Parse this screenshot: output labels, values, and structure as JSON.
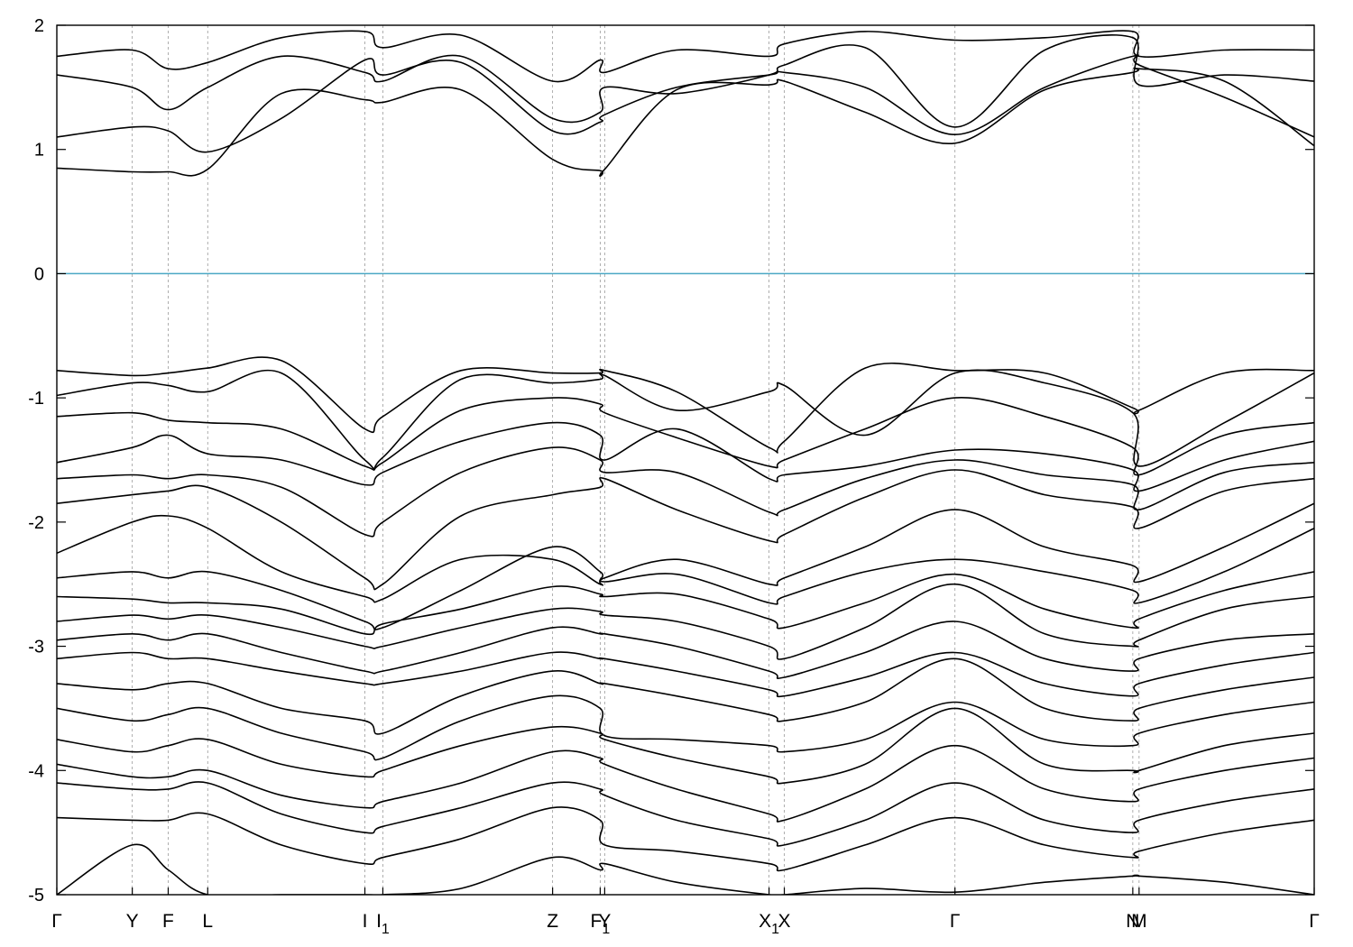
{
  "chart_data": {
    "type": "line",
    "title": "",
    "xlabel": "",
    "ylabel": "",
    "ylim": [
      -5,
      2
    ],
    "yticks": [
      "-5",
      "-4",
      "-3",
      "-2",
      "-1",
      "0",
      "1",
      "2"
    ],
    "fermi_level": 0,
    "fermi_color": "#4aa8c4",
    "line_color": "#000000",
    "grid": "vertical dashed lines at high-symmetry points",
    "legend": "none",
    "kpoints": [
      {
        "label": "Γ",
        "x": 0.0
      },
      {
        "label": "Y",
        "x": 0.84
      },
      {
        "label": "F",
        "x": 1.24
      },
      {
        "label": "L",
        "x": 1.68
      },
      {
        "label": "I",
        "x": 3.43
      },
      {
        "label": "I",
        "sub": "1",
        "x": 3.63
      },
      {
        "label": "Z",
        "x": 5.52
      },
      {
        "label": "F",
        "sub": "1",
        "x": 6.05
      },
      {
        "label": "Y",
        "x": 6.1
      },
      {
        "label": "X",
        "sub": "1",
        "x": 7.93
      },
      {
        "label": "X",
        "x": 8.1
      },
      {
        "label": "Γ",
        "x": 10.0
      },
      {
        "label": "N",
        "x": 11.98
      },
      {
        "label": "M",
        "x": 12.05
      },
      {
        "label": "Γ",
        "x": 14.0
      }
    ],
    "x_range": [
      0,
      14
    ],
    "series": [
      {
        "x": [
          0,
          0.84,
          1.24,
          1.68,
          2.5,
          3.43,
          3.63,
          4.5,
          5.52,
          6.05,
          6.1,
          6.9,
          7.93,
          8.1,
          9.0,
          10.0,
          11.0,
          11.98,
          12.05,
          13.0,
          14.0
        ],
        "values": [
          0.85,
          0.82,
          0.82,
          0.84,
          1.45,
          1.4,
          1.38,
          1.48,
          0.92,
          0.83,
          0.84,
          1.48,
          1.52,
          1.55,
          1.3,
          1.05,
          1.48,
          1.62,
          1.65,
          1.55,
          1.03
        ]
      },
      {
        "x": [
          0,
          0.84,
          1.24,
          1.68,
          2.5,
          3.43,
          3.63,
          4.5,
          5.52,
          6.05,
          6.1,
          6.9,
          7.93,
          8.1,
          9.0,
          10.0,
          11.0,
          11.98,
          12.05,
          13.0,
          14.0
        ],
        "values": [
          1.1,
          1.18,
          1.15,
          0.98,
          1.25,
          1.72,
          1.6,
          1.7,
          1.15,
          1.22,
          1.28,
          1.5,
          1.6,
          1.62,
          1.5,
          1.12,
          1.5,
          1.75,
          1.68,
          1.42,
          1.1
        ]
      },
      {
        "x": [
          0,
          0.84,
          1.24,
          1.68,
          2.5,
          3.43,
          3.63,
          4.5,
          5.52,
          6.05,
          6.1,
          6.9,
          7.93,
          8.1,
          9.0,
          10.0,
          11.0,
          11.98,
          12.05,
          13.0,
          14.0
        ],
        "values": [
          1.6,
          1.5,
          1.32,
          1.5,
          1.75,
          1.62,
          1.55,
          1.75,
          1.25,
          1.3,
          1.5,
          1.45,
          1.6,
          1.68,
          1.82,
          1.18,
          1.8,
          1.9,
          1.52,
          1.6,
          1.55
        ]
      },
      {
        "x": [
          0,
          0.84,
          1.24,
          1.68,
          2.5,
          3.43,
          3.63,
          4.5,
          5.52,
          6.05,
          6.1,
          6.9,
          7.93,
          8.1,
          9.0,
          10.0,
          11.0,
          11.98,
          12.05,
          13.0,
          14.0
        ],
        "values": [
          1.75,
          1.8,
          1.65,
          1.7,
          1.9,
          1.95,
          1.82,
          1.92,
          1.55,
          1.72,
          1.62,
          1.8,
          1.75,
          1.85,
          1.95,
          1.88,
          1.9,
          1.95,
          1.75,
          1.8,
          1.8
        ]
      },
      {
        "x": [
          0,
          0.84,
          1.24,
          1.68,
          2.5,
          3.43,
          3.63,
          4.5,
          5.52,
          6.05,
          6.1,
          6.9,
          7.93,
          8.1,
          9.0,
          10.0,
          11.0,
          11.98,
          12.05,
          13.0,
          14.0
        ],
        "values": [
          -0.78,
          -0.82,
          -0.8,
          -0.76,
          -0.7,
          -1.25,
          -1.15,
          -0.78,
          -0.8,
          -0.8,
          -0.78,
          -0.95,
          -1.4,
          -1.35,
          -0.76,
          -0.78,
          -0.8,
          -1.08,
          -1.1,
          -0.8,
          -0.78
        ]
      },
      {
        "x": [
          0,
          0.84,
          1.24,
          1.68,
          2.5,
          3.43,
          3.63,
          4.5,
          5.52,
          6.05,
          6.1,
          6.9,
          7.93,
          8.1,
          9.0,
          10.0,
          11.0,
          11.98,
          12.05,
          13.0,
          14.0
        ],
        "values": [
          -0.98,
          -0.88,
          -0.9,
          -0.95,
          -0.8,
          -1.5,
          -1.48,
          -0.85,
          -0.88,
          -0.85,
          -0.82,
          -1.1,
          -0.95,
          -0.9,
          -1.3,
          -0.8,
          -0.88,
          -1.12,
          -1.55,
          -1.2,
          -0.8
        ]
      },
      {
        "x": [
          0,
          0.84,
          1.24,
          1.68,
          2.5,
          3.43,
          3.63,
          4.5,
          5.52,
          6.05,
          6.1,
          6.9,
          7.93,
          8.1,
          9.0,
          10.0,
          11.0,
          11.98,
          12.05,
          13.0,
          14.0
        ],
        "values": [
          -1.15,
          -1.12,
          -1.18,
          -1.2,
          -1.25,
          -1.55,
          -1.52,
          -1.1,
          -1.0,
          -1.05,
          -1.12,
          -1.32,
          -1.55,
          -1.5,
          -1.25,
          -1.0,
          -1.15,
          -1.4,
          -1.62,
          -1.3,
          -1.2
        ]
      },
      {
        "x": [
          0,
          0.84,
          1.24,
          1.68,
          2.5,
          3.43,
          3.63,
          4.5,
          5.52,
          6.05,
          6.1,
          6.9,
          7.93,
          8.1,
          9.0,
          10.0,
          11.0,
          11.98,
          12.05,
          13.0,
          14.0
        ],
        "values": [
          -1.52,
          -1.4,
          -1.3,
          -1.45,
          -1.5,
          -1.7,
          -1.6,
          -1.35,
          -1.2,
          -1.3,
          -1.5,
          -1.25,
          -1.65,
          -1.62,
          -1.55,
          -1.42,
          -1.45,
          -1.58,
          -1.75,
          -1.5,
          -1.35
        ]
      },
      {
        "x": [
          0,
          0.84,
          1.24,
          1.68,
          2.5,
          3.43,
          3.63,
          4.5,
          5.52,
          6.05,
          6.1,
          6.9,
          7.93,
          8.1,
          9.0,
          10.0,
          11.0,
          11.98,
          12.05,
          13.0,
          14.0
        ],
        "values": [
          -1.65,
          -1.62,
          -1.65,
          -1.62,
          -1.72,
          -2.1,
          -2.0,
          -1.6,
          -1.4,
          -1.5,
          -1.6,
          -1.6,
          -1.92,
          -1.9,
          -1.65,
          -1.5,
          -1.62,
          -1.7,
          -1.9,
          -1.6,
          -1.52
        ]
      },
      {
        "x": [
          0,
          0.84,
          1.24,
          1.68,
          2.5,
          3.43,
          3.63,
          4.5,
          5.52,
          6.05,
          6.1,
          6.9,
          7.93,
          8.1,
          9.0,
          10.0,
          11.0,
          11.98,
          12.05,
          13.0,
          14.0
        ],
        "values": [
          -1.85,
          -1.78,
          -1.75,
          -1.72,
          -2.0,
          -2.45,
          -2.5,
          -1.95,
          -1.78,
          -1.72,
          -1.65,
          -1.9,
          -2.15,
          -2.1,
          -1.8,
          -1.58,
          -1.78,
          -1.88,
          -2.05,
          -1.75,
          -1.65
        ]
      },
      {
        "x": [
          0,
          0.84,
          1.24,
          1.68,
          2.5,
          3.43,
          3.63,
          4.5,
          5.52,
          6.05,
          6.1,
          6.9,
          7.93,
          8.1,
          9.0,
          10.0,
          11.0,
          11.98,
          12.05,
          13.0,
          14.0
        ],
        "values": [
          -2.25,
          -2.0,
          -1.95,
          -2.05,
          -2.4,
          -2.6,
          -2.62,
          -2.3,
          -2.3,
          -2.5,
          -2.45,
          -2.3,
          -2.5,
          -2.45,
          -2.2,
          -1.9,
          -2.2,
          -2.35,
          -2.48,
          -2.2,
          -1.85
        ]
      },
      {
        "x": [
          0,
          0.84,
          1.24,
          1.68,
          2.5,
          3.43,
          3.63,
          4.5,
          5.52,
          6.05,
          6.1,
          6.9,
          7.93,
          8.1,
          9.0,
          10.0,
          11.0,
          11.98,
          12.05,
          13.0,
          14.0
        ],
        "values": [
          -2.45,
          -2.4,
          -2.45,
          -2.4,
          -2.55,
          -2.8,
          -2.85,
          -2.55,
          -2.2,
          -2.4,
          -2.48,
          -2.42,
          -2.65,
          -2.6,
          -2.4,
          -2.3,
          -2.4,
          -2.55,
          -2.65,
          -2.4,
          -2.05
        ]
      },
      {
        "x": [
          0,
          0.84,
          1.24,
          1.68,
          2.5,
          3.43,
          3.63,
          4.5,
          5.52,
          6.05,
          6.1,
          6.9,
          7.93,
          8.1,
          9.0,
          10.0,
          11.0,
          11.98,
          12.05,
          13.0,
          14.0
        ],
        "values": [
          -2.6,
          -2.62,
          -2.65,
          -2.65,
          -2.7,
          -2.9,
          -2.82,
          -2.7,
          -2.52,
          -2.58,
          -2.6,
          -2.58,
          -2.78,
          -2.85,
          -2.65,
          -2.42,
          -2.7,
          -2.85,
          -2.78,
          -2.55,
          -2.4
        ]
      },
      {
        "x": [
          0,
          0.84,
          1.24,
          1.68,
          2.5,
          3.43,
          3.63,
          4.5,
          5.52,
          6.05,
          6.1,
          6.9,
          7.93,
          8.1,
          9.0,
          10.0,
          11.0,
          11.98,
          12.05,
          13.0,
          14.0
        ],
        "values": [
          -2.8,
          -2.75,
          -2.78,
          -2.75,
          -2.85,
          -3.0,
          -3.0,
          -2.85,
          -2.7,
          -2.72,
          -2.75,
          -2.8,
          -3.0,
          -3.1,
          -2.85,
          -2.5,
          -2.9,
          -3.0,
          -2.95,
          -2.7,
          -2.6
        ]
      },
      {
        "x": [
          0,
          0.84,
          1.24,
          1.68,
          2.5,
          3.43,
          3.63,
          4.5,
          5.52,
          6.05,
          6.1,
          6.9,
          7.93,
          8.1,
          9.0,
          10.0,
          11.0,
          11.98,
          12.05,
          13.0,
          14.0
        ],
        "values": [
          -2.95,
          -2.9,
          -2.95,
          -2.9,
          -3.05,
          -3.2,
          -3.2,
          -3.05,
          -2.85,
          -2.9,
          -2.9,
          -3.0,
          -3.2,
          -3.25,
          -3.05,
          -2.8,
          -3.1,
          -3.2,
          -3.1,
          -2.95,
          -2.9
        ]
      },
      {
        "x": [
          0,
          0.84,
          1.24,
          1.68,
          2.5,
          3.43,
          3.63,
          4.5,
          5.52,
          6.05,
          6.1,
          6.9,
          7.93,
          8.1,
          9.0,
          10.0,
          11.0,
          11.98,
          12.05,
          13.0,
          14.0
        ],
        "values": [
          -3.1,
          -3.05,
          -3.1,
          -3.1,
          -3.2,
          -3.3,
          -3.3,
          -3.2,
          -3.05,
          -3.1,
          -3.1,
          -3.2,
          -3.35,
          -3.4,
          -3.25,
          -3.05,
          -3.3,
          -3.4,
          -3.3,
          -3.15,
          -3.05
        ]
      },
      {
        "x": [
          0,
          0.84,
          1.24,
          1.68,
          2.5,
          3.43,
          3.63,
          4.5,
          5.52,
          6.05,
          6.1,
          6.9,
          7.93,
          8.1,
          9.0,
          10.0,
          11.0,
          11.98,
          12.05,
          13.0,
          14.0
        ],
        "values": [
          -3.3,
          -3.35,
          -3.3,
          -3.3,
          -3.5,
          -3.6,
          -3.7,
          -3.4,
          -3.2,
          -3.3,
          -3.3,
          -3.4,
          -3.55,
          -3.6,
          -3.45,
          -3.1,
          -3.5,
          -3.6,
          -3.5,
          -3.35,
          -3.25
        ]
      },
      {
        "x": [
          0,
          0.84,
          1.24,
          1.68,
          2.5,
          3.43,
          3.63,
          4.5,
          5.52,
          6.05,
          6.1,
          6.9,
          7.93,
          8.1,
          9.0,
          10.0,
          11.0,
          11.98,
          12.05,
          13.0,
          14.0
        ],
        "values": [
          -3.5,
          -3.6,
          -3.55,
          -3.5,
          -3.7,
          -3.85,
          -3.9,
          -3.6,
          -3.4,
          -3.5,
          -3.72,
          -3.75,
          -3.8,
          -3.85,
          -3.75,
          -3.45,
          -3.75,
          -3.8,
          -3.7,
          -3.55,
          -3.45
        ]
      },
      {
        "x": [
          0,
          0.84,
          1.24,
          1.68,
          2.5,
          3.43,
          3.63,
          4.5,
          5.52,
          6.05,
          6.1,
          6.9,
          7.93,
          8.1,
          9.0,
          10.0,
          11.0,
          11.98,
          12.05,
          13.0,
          14.0
        ],
        "values": [
          -3.75,
          -3.85,
          -3.8,
          -3.75,
          -3.95,
          -4.05,
          -4.0,
          -3.8,
          -3.65,
          -3.7,
          -3.75,
          -3.9,
          -4.05,
          -4.1,
          -3.95,
          -3.5,
          -3.95,
          -4.0,
          -4.0,
          -3.8,
          -3.7
        ]
      },
      {
        "x": [
          0,
          0.84,
          1.24,
          1.68,
          2.5,
          3.43,
          3.63,
          4.5,
          5.52,
          6.05,
          6.1,
          6.9,
          7.93,
          8.1,
          9.0,
          10.0,
          11.0,
          11.98,
          12.05,
          13.0,
          14.0
        ],
        "values": [
          -3.95,
          -4.05,
          -4.05,
          -4.0,
          -4.2,
          -4.3,
          -4.25,
          -4.1,
          -3.85,
          -3.9,
          -3.95,
          -4.15,
          -4.35,
          -4.4,
          -4.15,
          -3.8,
          -4.15,
          -4.25,
          -4.15,
          -4.0,
          -3.9
        ]
      },
      {
        "x": [
          0,
          0.84,
          1.24,
          1.68,
          2.5,
          3.43,
          3.63,
          4.5,
          5.52,
          6.05,
          6.1,
          6.9,
          7.93,
          8.1,
          9.0,
          10.0,
          11.0,
          11.98,
          12.05,
          13.0,
          14.0
        ],
        "values": [
          -4.1,
          -4.15,
          -4.15,
          -4.1,
          -4.35,
          -4.5,
          -4.45,
          -4.3,
          -4.1,
          -4.15,
          -4.2,
          -4.4,
          -4.55,
          -4.6,
          -4.4,
          -4.1,
          -4.4,
          -4.5,
          -4.4,
          -4.25,
          -4.15
        ]
      },
      {
        "x": [
          0,
          0.84,
          1.24,
          1.68,
          2.5,
          3.43,
          3.63,
          4.5,
          5.52,
          6.05,
          6.1,
          6.9,
          7.93,
          8.1,
          9.0,
          10.0,
          11.0,
          11.98,
          12.05,
          13.0,
          14.0
        ],
        "values": [
          -4.38,
          -4.4,
          -4.4,
          -4.35,
          -4.6,
          -4.75,
          -4.7,
          -4.55,
          -4.3,
          -4.4,
          -4.6,
          -4.65,
          -4.75,
          -4.8,
          -4.6,
          -4.38,
          -4.6,
          -4.7,
          -4.65,
          -4.5,
          -4.4
        ]
      },
      {
        "x": [
          0,
          0.84,
          1.24,
          1.68,
          2.5,
          3.43,
          3.63,
          4.5,
          5.52,
          6.05,
          6.1,
          6.9,
          7.93,
          8.1,
          9.0,
          10.0,
          11.0,
          11.98,
          12.05,
          13.0,
          14.0
        ],
        "values": [
          -5.0,
          -4.6,
          -4.8,
          -5.0,
          -5.0,
          -5.0,
          -5.0,
          -4.95,
          -4.7,
          -4.8,
          -4.75,
          -4.9,
          -5.0,
          -5.0,
          -4.95,
          -4.98,
          -4.9,
          -4.85,
          -4.85,
          -4.9,
          -5.0
        ]
      }
    ]
  }
}
